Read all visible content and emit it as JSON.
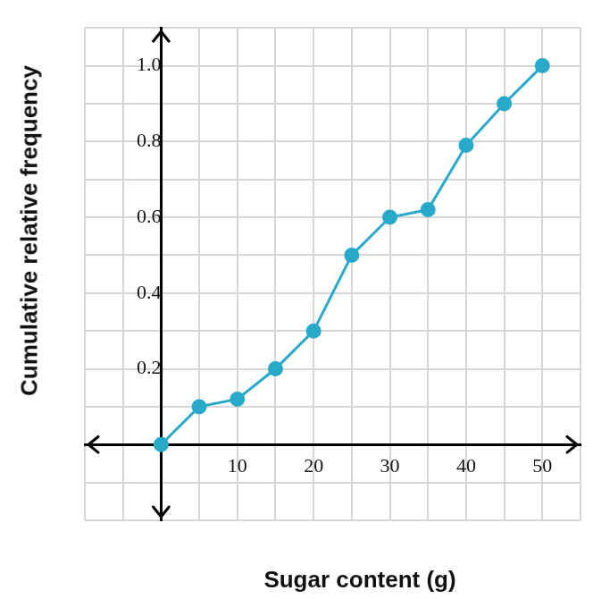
{
  "chart_data": {
    "type": "line",
    "x_label": "Sugar content (g)",
    "y_label": "Cumulative relative frequency",
    "x": [
      0,
      5,
      10,
      15,
      20,
      25,
      30,
      35,
      40,
      45,
      50
    ],
    "values": [
      0,
      0.1,
      0.12,
      0.2,
      0.3,
      0.5,
      0.6,
      0.62,
      0.79,
      0.9,
      1.0
    ],
    "color": "#29a9c9",
    "marker": "circle",
    "xlim": [
      -10,
      55
    ],
    "ylim": [
      -0.2,
      1.1
    ],
    "xticks": [
      10,
      20,
      30,
      40,
      50
    ],
    "yticks": [
      0.2,
      0.4,
      0.6,
      0.8,
      {
        "value": 1,
        "label": "1.0"
      }
    ],
    "grid": true
  }
}
